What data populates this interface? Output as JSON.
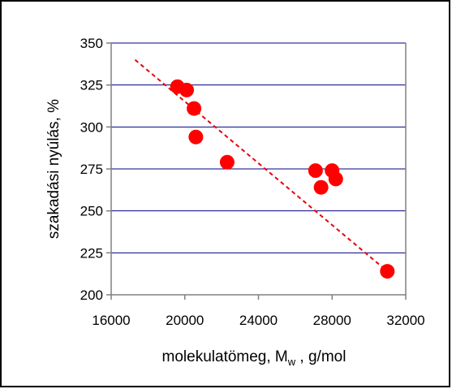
{
  "chart_data": {
    "type": "scatter",
    "xlabel_main": "molekulatömeg, M",
    "xlabel_sub": "w",
    "xlabel_tail": " , g/mol",
    "ylabel": "szakadási nyúlás, %",
    "xlim": [
      16000,
      32000
    ],
    "ylim": [
      200,
      350
    ],
    "xticks": [
      16000,
      20000,
      24000,
      28000,
      32000
    ],
    "yticks": [
      200,
      225,
      250,
      275,
      300,
      325,
      350
    ],
    "grid": "horizontal",
    "points": [
      {
        "x": 19600,
        "y": 324
      },
      {
        "x": 20100,
        "y": 322
      },
      {
        "x": 20500,
        "y": 311
      },
      {
        "x": 20600,
        "y": 294
      },
      {
        "x": 22300,
        "y": 279
      },
      {
        "x": 27100,
        "y": 274
      },
      {
        "x": 27400,
        "y": 264
      },
      {
        "x": 28000,
        "y": 274
      },
      {
        "x": 28200,
        "y": 269
      },
      {
        "x": 31000,
        "y": 214
      }
    ],
    "trendline": {
      "style": "dashed",
      "from": {
        "x": 17300,
        "y": 340
      },
      "to": {
        "x": 31000,
        "y": 214
      }
    },
    "colors": {
      "marker": "#ff0000",
      "trendline": "#e8000b",
      "grid": "#000080",
      "axis": "#808080"
    }
  }
}
